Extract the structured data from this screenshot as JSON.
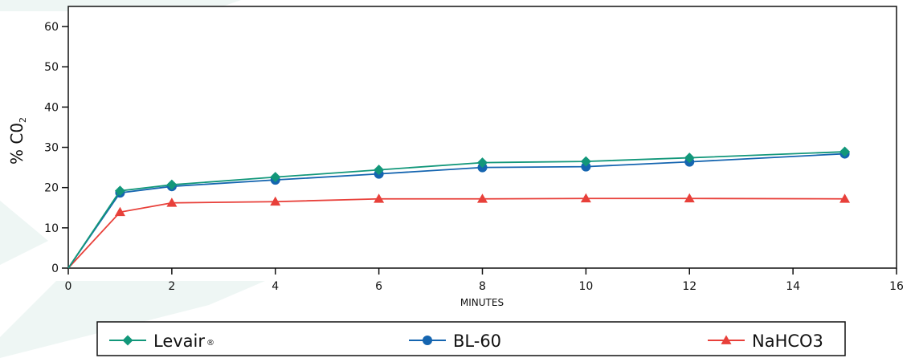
{
  "chart_data": {
    "type": "line",
    "xlabel": "MINUTES",
    "ylabel_main": "% C0",
    "ylabel_sub": "2",
    "xlim": [
      0,
      16
    ],
    "ylim": [
      0,
      65
    ],
    "xticks": [
      0,
      2,
      4,
      6,
      8,
      10,
      12,
      14,
      16
    ],
    "yticks": [
      0,
      10,
      20,
      30,
      40,
      50,
      60
    ],
    "grid": false,
    "legend_position": "bottom",
    "legend_reg_mark": "®",
    "series": [
      {
        "name": "Levair",
        "color": "#12977a",
        "marker": "diamond",
        "x": [
          0,
          1,
          2,
          4,
          6,
          8,
          10,
          12,
          15
        ],
        "y": [
          0,
          19.2,
          20.7,
          22.6,
          24.4,
          26.2,
          26.5,
          27.4,
          28.9
        ]
      },
      {
        "name": "BL-60",
        "color": "#1565b0",
        "marker": "circle",
        "x": [
          0,
          1,
          2,
          4,
          6,
          8,
          10,
          12,
          15
        ],
        "y": [
          0,
          18.7,
          20.3,
          21.9,
          23.4,
          25.0,
          25.2,
          26.4,
          28.4
        ]
      },
      {
        "name": "NaHCO3",
        "color": "#e8403a",
        "marker": "triangle",
        "x": [
          0,
          1,
          2,
          4,
          6,
          8,
          10,
          12,
          15
        ],
        "y": [
          0,
          13.9,
          16.2,
          16.5,
          17.2,
          17.2,
          17.3,
          17.3,
          17.2
        ]
      }
    ]
  }
}
